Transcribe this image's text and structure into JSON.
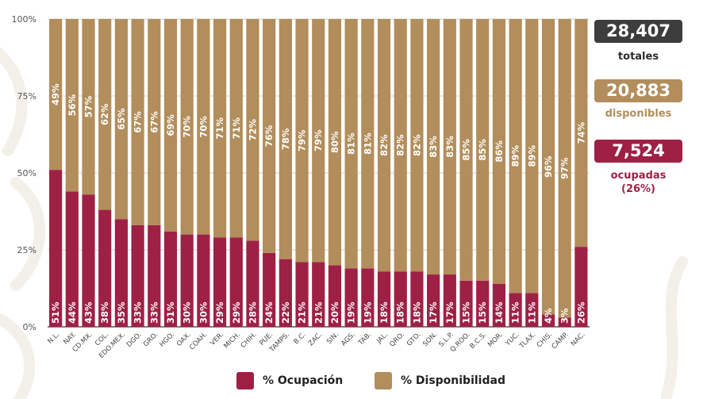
{
  "chart_data": {
    "type": "bar",
    "stacked": true,
    "percent_stacked": true,
    "title": "",
    "xlabel": "",
    "ylabel": "",
    "ylim": [
      0,
      100
    ],
    "y_ticks": [
      "0%",
      "25%",
      "50%",
      "75%",
      "100%"
    ],
    "y_tick_values": [
      0,
      25,
      50,
      75,
      100
    ],
    "grid": true,
    "legend_position": "bottom",
    "categories": [
      "N.L.",
      "NAY.",
      "CD.MX.",
      "COL.",
      "EDO.MEX.",
      "DGO.",
      "GRO.",
      "HGO.",
      "OAX.",
      "COAH.",
      "VER.",
      "MICH.",
      "CHIH.",
      "PUE.",
      "TAMPS.",
      "B.C.",
      "ZAC.",
      "SIN.",
      "AGS.",
      "TAB.",
      "JAL.",
      "QRO.",
      "GTO.",
      "SON.",
      "S.L.P.",
      "Q.ROO.",
      "B.C.S.",
      "MOR.",
      "YUC.",
      "TLAX.",
      "CHIS.",
      "CAMP.",
      "NAC."
    ],
    "series": [
      {
        "name": "% Ocupación",
        "color": "#9e2145",
        "values": [
          51,
          44,
          43,
          38,
          35,
          33,
          33,
          31,
          30,
          30,
          29,
          29,
          28,
          24,
          22,
          21,
          21,
          20,
          19,
          19,
          18,
          18,
          18,
          17,
          17,
          15,
          15,
          14,
          11,
          11,
          4,
          3,
          26
        ]
      },
      {
        "name": "% Disponibilidad",
        "color": "#b28e5c",
        "values": [
          49,
          56,
          57,
          62,
          65,
          67,
          67,
          69,
          70,
          70,
          71,
          71,
          72,
          76,
          78,
          79,
          79,
          80,
          81,
          81,
          82,
          82,
          82,
          83,
          83,
          85,
          85,
          86,
          89,
          89,
          96,
          97,
          74
        ]
      }
    ]
  },
  "summary": {
    "total": {
      "value": "28,407",
      "label": "totales",
      "color": "#3d3d3d"
    },
    "available": {
      "value": "20,883",
      "label": "disponibles",
      "color": "#b28e5c"
    },
    "occupied": {
      "value": "7,524",
      "label": "ocupadas",
      "sublabel": "(26%)",
      "color": "#9e2145"
    }
  },
  "legend": {
    "items": [
      {
        "label": "% Ocupación",
        "color": "#9e2145"
      },
      {
        "label": "% Disponibilidad",
        "color": "#b28e5c"
      }
    ]
  }
}
